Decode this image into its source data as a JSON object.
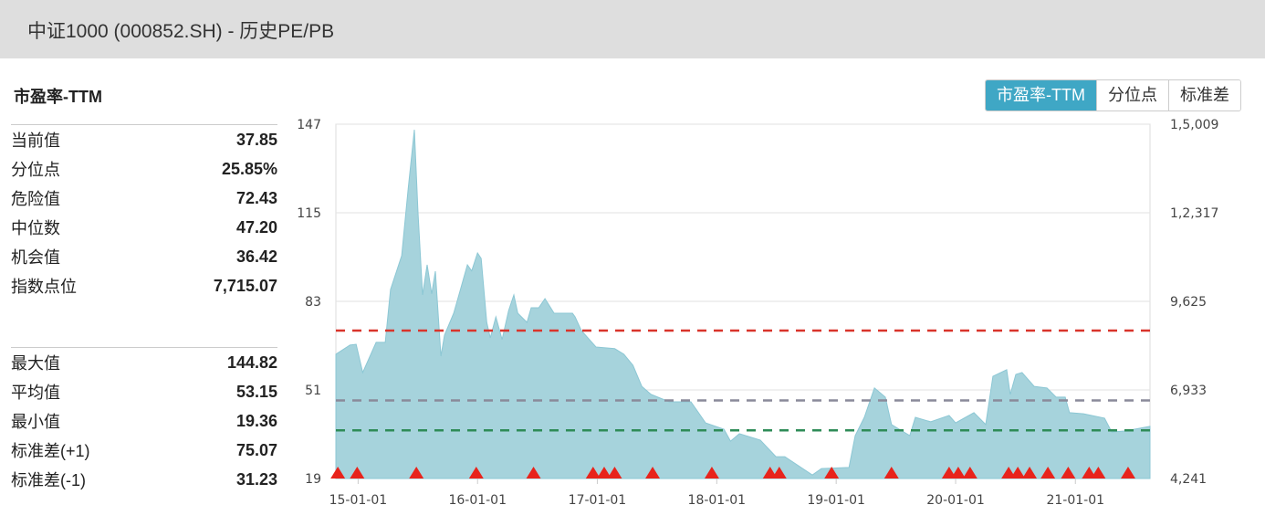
{
  "header": {
    "title": "中证1000 (000852.SH) - 历史PE/PB"
  },
  "section_title": "市盈率-TTM",
  "tabs": [
    {
      "label": "市盈率-TTM",
      "active": true
    },
    {
      "label": "分位点",
      "active": false
    },
    {
      "label": "标准差",
      "active": false
    }
  ],
  "stats_primary": [
    {
      "label": "当前值",
      "value": "37.85"
    },
    {
      "label": "分位点",
      "value": "25.85%"
    },
    {
      "label": "危险值",
      "value": "72.43"
    },
    {
      "label": "中位数",
      "value": "47.20"
    },
    {
      "label": "机会值",
      "value": "36.42"
    },
    {
      "label": "指数点位",
      "value": "7,715.07"
    }
  ],
  "stats_secondary": [
    {
      "label": "最大值",
      "value": "144.82"
    },
    {
      "label": "平均值",
      "value": "53.15"
    },
    {
      "label": "最小值",
      "value": "19.36"
    },
    {
      "label": "标准差(+1)",
      "value": "75.07"
    },
    {
      "label": "标准差(-1)",
      "value": "31.23"
    }
  ],
  "colors": {
    "accent": "#3fa7c5",
    "area": "#a6d3dc",
    "danger": "#d9342b",
    "median": "#8a8a9a",
    "opportunity": "#2e8b57",
    "marker": "#e8231b"
  },
  "chart_data": {
    "type": "area",
    "xlim": [
      "2014-10-25",
      "2021-08-17"
    ],
    "ylim": [
      19,
      147
    ],
    "grid": true,
    "x_ticks": [
      {
        "date": "2015-01-01",
        "label": "15-01-01"
      },
      {
        "date": "2016-01-01",
        "label": "16-01-01"
      },
      {
        "date": "2017-01-01",
        "label": "17-01-01"
      },
      {
        "date": "2018-01-01",
        "label": "18-01-01"
      },
      {
        "date": "2019-01-01",
        "label": "19-01-01"
      },
      {
        "date": "2020-01-01",
        "label": "20-01-01"
      },
      {
        "date": "2021-01-01",
        "label": "21-01-01"
      }
    ],
    "y_ticks": [
      147,
      115,
      83,
      51,
      19
    ],
    "y2_tick_labels": [
      "1,5,009",
      "1,2,317",
      "9,625",
      "6,933",
      "4,241"
    ],
    "series": [
      {
        "points": [
          [
            "2014-10-25",
            63.9
          ],
          [
            "2014-12-07",
            67.2
          ],
          [
            "2014-12-26",
            67.5
          ],
          [
            "2015-01-15",
            57.3
          ],
          [
            "2015-02-25",
            68.2
          ],
          [
            "2015-03-25",
            68.2
          ],
          [
            "2015-04-10",
            87.3
          ],
          [
            "2015-05-14",
            99.5
          ],
          [
            "2015-06-03",
            123.6
          ],
          [
            "2015-06-22",
            145
          ],
          [
            "2015-07-03",
            115
          ],
          [
            "2015-07-17",
            85.3
          ],
          [
            "2015-07-31",
            96.2
          ],
          [
            "2015-08-14",
            85.7
          ],
          [
            "2015-08-25",
            93.9
          ],
          [
            "2015-09-11",
            63.2
          ],
          [
            "2015-09-22",
            70.8
          ],
          [
            "2015-10-20",
            78.7
          ],
          [
            "2015-11-05",
            85.3
          ],
          [
            "2015-12-01",
            96.2
          ],
          [
            "2015-12-14",
            94
          ],
          [
            "2016-01-01",
            100.5
          ],
          [
            "2016-01-12",
            98.5
          ],
          [
            "2016-01-29",
            75.4
          ],
          [
            "2016-02-09",
            69.8
          ],
          [
            "2016-02-26",
            77.4
          ],
          [
            "2016-03-16",
            69.2
          ],
          [
            "2016-04-05",
            79.7
          ],
          [
            "2016-04-21",
            85.3
          ],
          [
            "2016-05-03",
            78.7
          ],
          [
            "2016-05-31",
            75.4
          ],
          [
            "2016-06-13",
            80.7
          ],
          [
            "2016-07-06",
            80.7
          ],
          [
            "2016-07-25",
            84
          ],
          [
            "2016-08-22",
            78.7
          ],
          [
            "2016-10-17",
            78.7
          ],
          [
            "2016-10-25",
            77.4
          ],
          [
            "2016-11-13",
            72.5
          ],
          [
            "2016-12-28",
            66.5
          ],
          [
            "2017-02-23",
            65.9
          ],
          [
            "2017-03-23",
            63.9
          ],
          [
            "2017-04-20",
            59.9
          ],
          [
            "2017-05-17",
            52.3
          ],
          [
            "2017-06-14",
            49.4
          ],
          [
            "2017-08-09",
            46.7
          ],
          [
            "2017-10-14",
            46.7
          ],
          [
            "2017-11-28",
            39.1
          ],
          [
            "2018-01-23",
            36.8
          ],
          [
            "2018-02-12",
            32.5
          ],
          [
            "2018-03-11",
            35.2
          ],
          [
            "2018-05-14",
            32.9
          ],
          [
            "2018-07-01",
            26.9
          ],
          [
            "2018-07-28",
            26.9
          ],
          [
            "2018-10-20",
            20.3
          ],
          [
            "2018-11-17",
            22.6
          ],
          [
            "2019-02-09",
            23
          ],
          [
            "2019-02-28",
            34.5
          ],
          [
            "2019-03-28",
            41.1
          ],
          [
            "2019-04-28",
            51.7
          ],
          [
            "2019-05-31",
            48.4
          ],
          [
            "2019-06-19",
            38.5
          ],
          [
            "2019-08-14",
            34.5
          ],
          [
            "2019-08-31",
            41.1
          ],
          [
            "2019-10-17",
            39.5
          ],
          [
            "2019-12-12",
            41.8
          ],
          [
            "2020-01-01",
            39.1
          ],
          [
            "2020-02-26",
            42.8
          ],
          [
            "2020-04-02",
            38.5
          ],
          [
            "2020-04-24",
            55.9
          ],
          [
            "2020-06-05",
            58.3
          ],
          [
            "2020-06-16",
            49.4
          ],
          [
            "2020-07-03",
            56.6
          ],
          [
            "2020-07-22",
            57.3
          ],
          [
            "2020-08-28",
            52.3
          ],
          [
            "2020-10-06",
            51.7
          ],
          [
            "2020-11-03",
            48.4
          ],
          [
            "2020-12-01",
            48.4
          ],
          [
            "2020-12-14",
            42.8
          ],
          [
            "2021-01-26",
            42.4
          ],
          [
            "2021-03-31",
            40.8
          ],
          [
            "2021-04-22",
            35.8
          ],
          [
            "2021-06-03",
            36.2
          ],
          [
            "2021-08-17",
            37.85
          ]
        ]
      }
    ],
    "reference_lines": [
      {
        "value": 72.43,
        "color": "#d9342b"
      },
      {
        "value": 47.2,
        "color": "#8a8a9a"
      },
      {
        "value": 36.42,
        "color": "#2e8b57"
      }
    ],
    "markers": [
      "2014-10-31",
      "2014-12-29",
      "2015-06-28",
      "2015-12-28",
      "2016-06-20",
      "2016-12-19",
      "2017-01-22",
      "2017-02-23",
      "2017-06-19",
      "2017-12-17",
      "2018-06-13",
      "2018-07-11",
      "2018-12-18",
      "2019-06-19",
      "2019-12-12",
      "2020-01-09",
      "2020-02-14",
      "2020-06-11",
      "2020-07-09",
      "2020-08-14",
      "2020-10-09",
      "2020-12-10",
      "2021-02-12",
      "2021-03-12",
      "2021-06-11"
    ]
  }
}
